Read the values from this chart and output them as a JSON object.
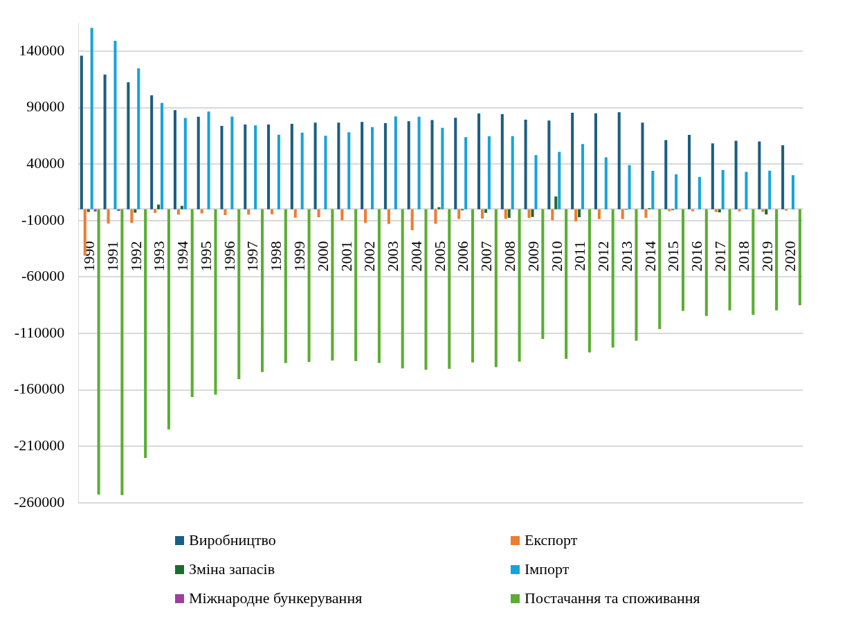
{
  "chart_data": {
    "type": "bar",
    "categories": [
      "1990",
      "1991",
      "1992",
      "1993",
      "1994",
      "1995",
      "1996",
      "1997",
      "1998",
      "1999",
      "2000",
      "2001",
      "2002",
      "2003",
      "2004",
      "2005",
      "2006",
      "2007",
      "2008",
      "2009",
      "2010",
      "2011",
      "2012",
      "2013",
      "2014",
      "2015",
      "2016",
      "2017",
      "2018",
      "2019",
      "2020"
    ],
    "series": [
      {
        "name": "Виробництво",
        "color": "#1b5e82",
        "values": [
          136000,
          119300,
          112400,
          100900,
          87700,
          82000,
          73900,
          75000,
          75000,
          75600,
          76800,
          76800,
          77400,
          76200,
          77900,
          79100,
          81000,
          84800,
          84200,
          79300,
          78500,
          85400,
          85000,
          86000,
          76800,
          61300,
          65800,
          58300,
          60700,
          60100,
          56700
        ]
      },
      {
        "name": "Експорт",
        "color": "#ed7d31",
        "values": [
          -41000,
          -12800,
          -12300,
          -3300,
          -4800,
          -3700,
          -5200,
          -4800,
          -4400,
          -7500,
          -7100,
          -9800,
          -12200,
          -13000,
          -18600,
          -12900,
          -8700,
          -8300,
          -8500,
          -7800,
          -9700,
          -10800,
          -8700,
          -8700,
          -7600,
          -1800,
          -1800,
          -2500,
          -1800,
          -2300,
          -1300
        ]
      },
      {
        "name": "Зміна запасів",
        "color": "#1e6b2e",
        "values": [
          -2400,
          0,
          -3100,
          4200,
          3000,
          0,
          0,
          0,
          0,
          0,
          0,
          0,
          0,
          0,
          0,
          1800,
          -1000,
          -3200,
          -7600,
          -6900,
          11300,
          -7100,
          0,
          -500,
          1000,
          -800,
          0,
          -2800,
          0,
          -4600,
          0
        ]
      },
      {
        "name": "Імпорт",
        "color": "#16a3dc",
        "values": [
          160700,
          149200,
          124800,
          94200,
          80800,
          86500,
          82100,
          74300,
          66000,
          67800,
          65100,
          68200,
          72800,
          82300,
          82000,
          72200,
          63900,
          64700,
          64800,
          48000,
          50800,
          57800,
          46000,
          39100,
          34000,
          30900,
          28600,
          34700,
          33100,
          34100,
          30100
        ]
      },
      {
        "name": "Міжнародне бункерування",
        "color": "#a03da0",
        "values": [
          -2000,
          -1500,
          0,
          0,
          0,
          0,
          0,
          0,
          0,
          0,
          0,
          0,
          0,
          0,
          0,
          0,
          0,
          0,
          0,
          0,
          0,
          0,
          0,
          0,
          0,
          0,
          0,
          0,
          0,
          0,
          0
        ]
      },
      {
        "name": "Постачання та споживання",
        "color": "#5aae32",
        "values": [
          -252800,
          -253300,
          -220300,
          -195000,
          -166300,
          -164200,
          -150600,
          -144200,
          -136200,
          -135300,
          -134100,
          -134500,
          -136200,
          -141000,
          -142200,
          -141400,
          -135700,
          -139800,
          -134900,
          -114900,
          -132500,
          -126900,
          -122500,
          -116500,
          -106100,
          -90100,
          -94500,
          -89700,
          -93600,
          -89700,
          -85000
        ]
      }
    ],
    "ylim": [
      -260000,
      165000
    ],
    "yticks": [
      -260000,
      -210000,
      -160000,
      -110000,
      -60000,
      -10000,
      40000,
      90000,
      140000
    ],
    "grid": "y",
    "legend": "bottom"
  }
}
